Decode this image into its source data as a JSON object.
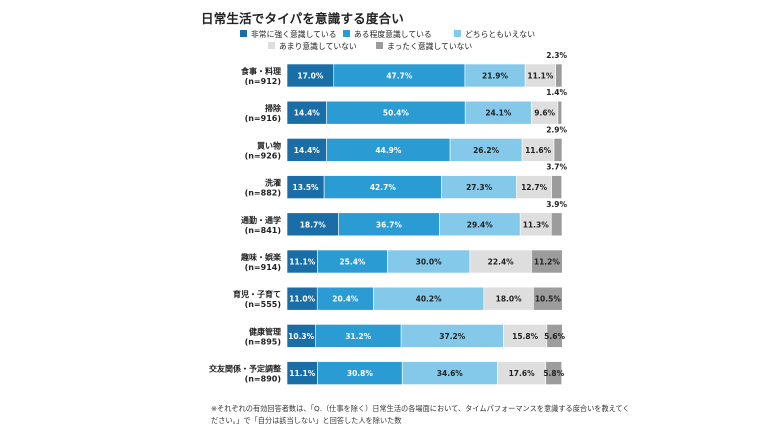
{
  "chart_data": {
    "type": "bar",
    "orientation": "horizontal",
    "stacked": true,
    "title": "日常生活でタイパを意識する度合い",
    "categories": [
      {
        "name": "食事・料理",
        "n": "(n=912)"
      },
      {
        "name": "掃除",
        "n": "(n=916)"
      },
      {
        "name": "買い物",
        "n": "(n=926)"
      },
      {
        "name": "洗濯",
        "n": "(n=882)"
      },
      {
        "name": "通勤・通学",
        "n": "(n=841)"
      },
      {
        "name": "趣味・娯楽",
        "n": "(n=914)"
      },
      {
        "name": "育児・子育て",
        "n": "(n=555)"
      },
      {
        "name": "健康管理",
        "n": "(n=895)"
      },
      {
        "name": "交友関係・予定調整",
        "n": "(n=890)"
      }
    ],
    "series": [
      {
        "name": "非常に強く意識している",
        "color": "#1a6ea8",
        "values": [
          17.0,
          14.4,
          14.4,
          13.5,
          18.7,
          11.1,
          11.0,
          10.3,
          11.1
        ]
      },
      {
        "name": "ある程度意識している",
        "color": "#2a9bd3",
        "values": [
          47.7,
          50.4,
          44.9,
          42.7,
          36.7,
          25.4,
          20.4,
          31.2,
          30.8
        ]
      },
      {
        "name": "どちらともいえない",
        "color": "#84c9ea",
        "values": [
          21.9,
          24.1,
          26.2,
          27.3,
          29.4,
          30.0,
          40.2,
          37.2,
          34.6
        ]
      },
      {
        "name": "あまり意識していない",
        "color": "#dedede",
        "values": [
          11.1,
          9.6,
          11.6,
          12.7,
          11.3,
          22.4,
          18.0,
          15.8,
          17.6
        ]
      },
      {
        "name": "まったく意識していない",
        "color": "#9c9c9c",
        "values": [
          2.3,
          1.4,
          2.9,
          3.7,
          3.9,
          11.2,
          10.5,
          5.6,
          5.8
        ]
      }
    ],
    "labels": [
      [
        "17.0%",
        "47.7%",
        "21.9%",
        "11.1%",
        "2.3%"
      ],
      [
        "14.4%",
        "50.4%",
        "24.1%",
        "9.6%",
        "1.4%"
      ],
      [
        "14.4%",
        "44.9%",
        "26.2%",
        "11.6%",
        "2.9%"
      ],
      [
        "13.5%",
        "42.7%",
        "27.3%",
        "12.7%",
        "3.7%"
      ],
      [
        "18.7%",
        "36.7%",
        "29.4%",
        "11.3%",
        "3.9%"
      ],
      [
        "11.1%",
        "25.4%",
        "30.0%",
        "22.4%",
        "11.2%"
      ],
      [
        "11.0%",
        "20.4%",
        "40.2%",
        "18.0%",
        "10.5%"
      ],
      [
        "10.3%",
        "31.2%",
        "37.2%",
        "15.8%",
        "5.6%"
      ],
      [
        "11.1%",
        "30.8%",
        "34.6%",
        "17.6%",
        "5.8%"
      ]
    ],
    "xlim": [
      0,
      100
    ],
    "legend_position": "top",
    "note": "※それぞれの有効回答者数は、「Q.（仕事を除く）日常生活の各場面において、タイムパフォーマンスを意識する度合いを教えてください。」で「自分は該当しない」と回答した人を除いた数"
  }
}
